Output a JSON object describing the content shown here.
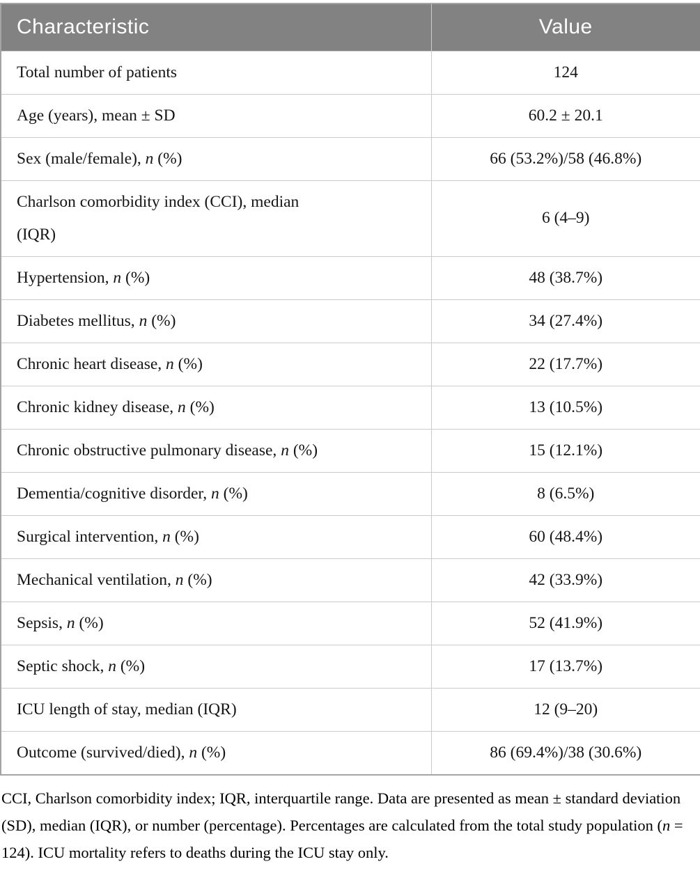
{
  "colors": {
    "header_bg": "#828282",
    "header_text": "#ffffff",
    "inner_border": "#cbcbcb",
    "outer_border": "#a5a5a5",
    "body_text": "#151515"
  },
  "table": {
    "columns": [
      {
        "label": "Characteristic"
      },
      {
        "label": "Value"
      }
    ],
    "rows": [
      {
        "label": [
          {
            "text": "Total number of patients"
          }
        ],
        "value": "124"
      },
      {
        "label": [
          {
            "text": "Age (years), mean ± SD"
          }
        ],
        "value": "60.2 ± 20.1"
      },
      {
        "label": [
          {
            "text": "Sex (male/female), "
          },
          {
            "text": "n",
            "italic": true
          },
          {
            "text": " (%)"
          }
        ],
        "value": "66 (53.2%)/58 (46.8%)"
      },
      {
        "label": [
          {
            "text": "Charlson comorbidity index (CCI), median "
          },
          {
            "break": true
          },
          {
            "text": "(IQR)"
          }
        ],
        "value": "6 (4–9)"
      },
      {
        "label": [
          {
            "text": "Hypertension, "
          },
          {
            "text": "n",
            "italic": true
          },
          {
            "text": " (%)"
          }
        ],
        "value": "48 (38.7%)"
      },
      {
        "label": [
          {
            "text": "Diabetes mellitus, "
          },
          {
            "text": "n",
            "italic": true
          },
          {
            "text": " (%)"
          }
        ],
        "value": "34 (27.4%)"
      },
      {
        "label": [
          {
            "text": "Chronic heart disease, "
          },
          {
            "text": "n",
            "italic": true
          },
          {
            "text": " (%)"
          }
        ],
        "value": "22 (17.7%)"
      },
      {
        "label": [
          {
            "text": "Chronic kidney disease, "
          },
          {
            "text": "n",
            "italic": true
          },
          {
            "text": " (%)"
          }
        ],
        "value": "13 (10.5%)"
      },
      {
        "label": [
          {
            "text": "Chronic obstructive pulmonary disease, "
          },
          {
            "text": "n",
            "italic": true
          },
          {
            "text": " (%)"
          }
        ],
        "value": "15 (12.1%)"
      },
      {
        "label": [
          {
            "text": "Dementia/cognitive disorder, "
          },
          {
            "text": "n",
            "italic": true
          },
          {
            "text": " (%)"
          }
        ],
        "value": "8 (6.5%)"
      },
      {
        "label": [
          {
            "text": "Surgical intervention, "
          },
          {
            "text": "n",
            "italic": true
          },
          {
            "text": " (%)"
          }
        ],
        "value": "60 (48.4%)"
      },
      {
        "label": [
          {
            "text": "Mechanical ventilation, "
          },
          {
            "text": "n",
            "italic": true
          },
          {
            "text": " (%)"
          }
        ],
        "value": "42 (33.9%)"
      },
      {
        "label": [
          {
            "text": "Sepsis, "
          },
          {
            "text": "n",
            "italic": true
          },
          {
            "text": " (%)"
          }
        ],
        "value": "52 (41.9%)"
      },
      {
        "label": [
          {
            "text": "Septic shock, "
          },
          {
            "text": "n",
            "italic": true
          },
          {
            "text": " (%)"
          }
        ],
        "value": "17 (13.7%)"
      },
      {
        "label": [
          {
            "text": "ICU length of stay, median (IQR)"
          }
        ],
        "value": "12 (9–20)"
      },
      {
        "label": [
          {
            "text": "Outcome (survived/died), "
          },
          {
            "text": "n",
            "italic": true
          },
          {
            "text": " (%)"
          }
        ],
        "value": "86 (69.4%)/38 (30.6%)"
      }
    ]
  },
  "footnote": [
    {
      "text": "CCI, Charlson comorbidity index; IQR, interquartile range. Data are presented as mean ± standard deviation (SD), median (IQR), or number (percentage). Percentages are calculated from the total study population ("
    },
    {
      "text": "n",
      "italic": true
    },
    {
      "text": " = 124). ICU mortality refers to deaths during the ICU stay only."
    }
  ]
}
